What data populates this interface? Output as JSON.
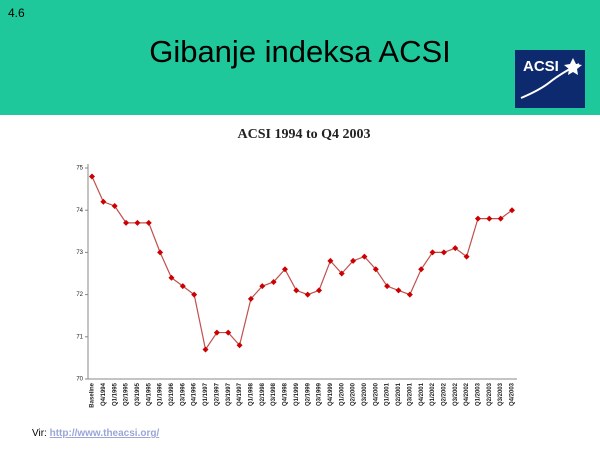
{
  "slide_number": "4.6",
  "title": "Gibanje indeksa ACSI",
  "logo_text": "ACSI",
  "footer": {
    "label": "Vir:",
    "link": "http://www.theacsi.org/"
  },
  "chart_data": {
    "type": "line",
    "title": "ACSI 1994 to Q4 2003",
    "categories": [
      "Baseline",
      "Q4/1994",
      "Q1/1995",
      "Q2/1995",
      "Q3/1995",
      "Q4/1995",
      "Q1/1996",
      "Q2/1996",
      "Q3/1996",
      "Q4/1996",
      "Q1/1997",
      "Q2/1997",
      "Q3/1997",
      "Q4/1997",
      "Q1/1998",
      "Q2/1998",
      "Q3/1998",
      "Q4/1998",
      "Q1/1999",
      "Q2/1999",
      "Q3/1999",
      "Q4/1999",
      "Q1/2000",
      "Q2/2000",
      "Q3/2000",
      "Q4/2000",
      "Q1/2001",
      "Q2/2001",
      "Q3/2001",
      "Q4/2001",
      "Q1/2002",
      "Q2/2002",
      "Q3/2002",
      "Q4/2002",
      "Q1/2003",
      "Q2/2003",
      "Q3/2003",
      "Q4/2003"
    ],
    "values": [
      74.8,
      74.2,
      74.1,
      73.7,
      73.7,
      73.7,
      73.0,
      72.4,
      72.2,
      72.0,
      70.7,
      71.1,
      71.1,
      70.8,
      71.9,
      72.2,
      72.3,
      72.6,
      72.1,
      72.0,
      72.1,
      72.8,
      72.5,
      72.8,
      72.9,
      72.6,
      72.2,
      72.1,
      72.0,
      72.6,
      73.0,
      73.0,
      73.1,
      72.9,
      73.8,
      73.8,
      73.8,
      74.0
    ],
    "color": "#c0504d",
    "marker_color": "#cc0000",
    "ylim": [
      70,
      75
    ],
    "yticks": [
      70,
      71,
      72,
      73,
      74,
      75
    ]
  }
}
